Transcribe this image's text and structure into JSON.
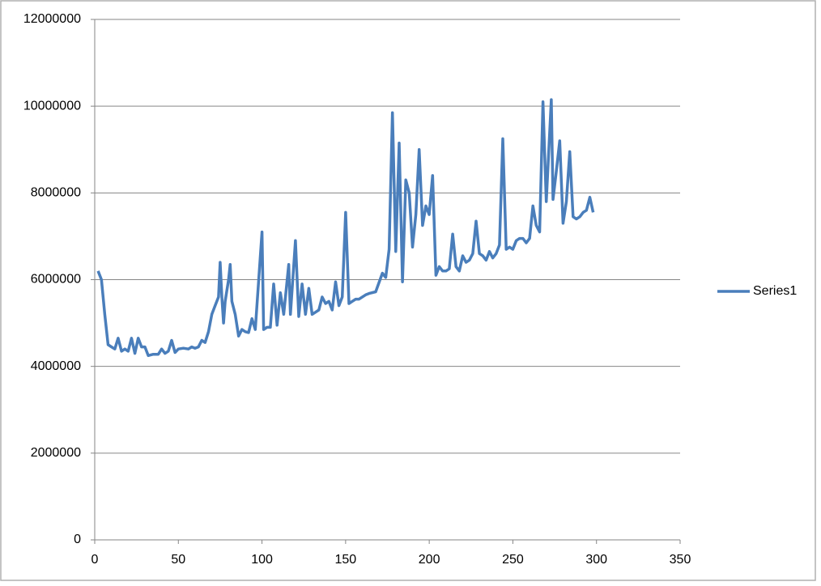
{
  "chart_data": {
    "type": "line",
    "x": [
      2,
      4,
      6,
      8,
      10,
      12,
      14,
      16,
      18,
      20,
      22,
      24,
      26,
      28,
      30,
      32,
      35,
      38,
      40,
      42,
      44,
      46,
      48,
      50,
      53,
      56,
      58,
      60,
      62,
      64,
      66,
      68,
      70,
      72,
      74,
      75,
      76,
      77,
      78,
      80,
      81,
      82,
      84,
      86,
      88,
      90,
      92,
      94,
      96,
      100,
      101,
      103,
      105,
      107,
      109,
      111,
      113,
      116,
      117,
      120,
      122,
      124,
      126,
      128,
      130,
      132,
      134,
      136,
      138,
      140,
      142,
      144,
      146,
      148,
      150,
      152,
      154,
      156,
      158,
      160,
      162,
      164,
      168,
      172,
      174,
      176,
      178,
      180,
      182,
      184,
      186,
      188,
      190,
      192,
      194,
      196,
      198,
      200,
      202,
      204,
      206,
      208,
      210,
      212,
      214,
      216,
      218,
      220,
      222,
      224,
      226,
      228,
      230,
      232,
      234,
      236,
      238,
      240,
      242,
      244,
      246,
      248,
      250,
      252,
      254,
      256,
      258,
      260,
      262,
      264,
      266,
      268,
      270,
      273,
      274,
      276,
      278,
      280,
      282,
      284,
      286,
      288,
      290,
      292,
      294,
      296,
      298
    ],
    "series": [
      {
        "name": "Series1",
        "color": "#4a7ebb",
        "values": [
          6200000,
          6000000,
          5200000,
          4500000,
          4450000,
          4400000,
          4650000,
          4350000,
          4400000,
          4350000,
          4650000,
          4300000,
          4650000,
          4450000,
          4450000,
          4250000,
          4280000,
          4280000,
          4400000,
          4300000,
          4350000,
          4600000,
          4320000,
          4400000,
          4420000,
          4400000,
          4450000,
          4420000,
          4450000,
          4600000,
          4550000,
          4800000,
          5200000,
          5400000,
          5600000,
          6400000,
          5600000,
          5000000,
          5500000,
          6000000,
          6350000,
          5500000,
          5200000,
          4700000,
          4850000,
          4800000,
          4780000,
          5100000,
          4850000,
          7100000,
          4850000,
          4900000,
          4900000,
          5900000,
          4950000,
          5700000,
          5200000,
          6350000,
          5200000,
          6900000,
          5150000,
          5900000,
          5200000,
          5800000,
          5200000,
          5250000,
          5300000,
          5600000,
          5450000,
          5500000,
          5300000,
          5950000,
          5400000,
          5600000,
          7550000,
          5450000,
          5500000,
          5550000,
          5550000,
          5600000,
          5650000,
          5680000,
          5720000,
          6150000,
          6050000,
          6700000,
          9850000,
          6650000,
          9150000,
          5950000,
          8300000,
          8000000,
          6750000,
          7500000,
          9000000,
          7250000,
          7700000,
          7500000,
          8400000,
          6100000,
          6300000,
          6200000,
          6200000,
          6250000,
          7050000,
          6300000,
          6200000,
          6550000,
          6400000,
          6450000,
          6600000,
          7350000,
          6600000,
          6550000,
          6450000,
          6650000,
          6500000,
          6600000,
          6800000,
          9250000,
          6700000,
          6750000,
          6700000,
          6900000,
          6950000,
          6950000,
          6850000,
          6950000,
          7700000,
          7250000,
          7100000,
          10100000,
          7800000,
          10150000,
          7850000,
          8500000,
          9200000,
          7300000,
          7800000,
          8950000,
          7450000,
          7400000,
          7450000,
          7550000,
          7600000,
          7900000,
          7550000
        ]
      }
    ],
    "xlim": [
      0,
      350
    ],
    "xticks": [
      0,
      50,
      100,
      150,
      200,
      250,
      300,
      350
    ],
    "ylim": [
      0,
      12000000
    ],
    "yticks": [
      0,
      2000000,
      4000000,
      6000000,
      8000000,
      10000000,
      12000000
    ],
    "grid": true,
    "legend": "right"
  }
}
